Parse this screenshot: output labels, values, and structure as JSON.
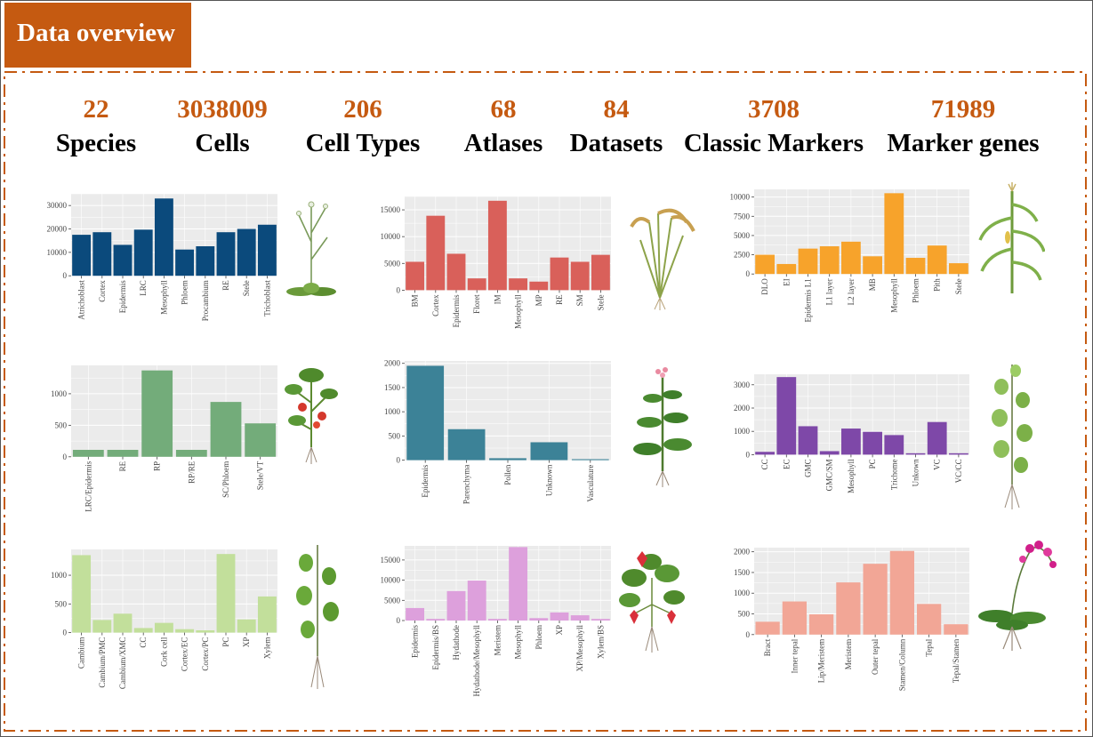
{
  "header": {
    "title": "Data overview"
  },
  "stats": [
    {
      "value": "22",
      "label": "Species"
    },
    {
      "value": "3038009",
      "label": "Cells"
    },
    {
      "value": "206",
      "label": "Cell Types"
    },
    {
      "value": "68",
      "label": "Atlases"
    },
    {
      "value": "84",
      "label": "Datasets"
    },
    {
      "value": "3708",
      "label": "Classic Markers"
    },
    {
      "value": "71989",
      "label": "Marker genes"
    }
  ],
  "plants": [
    {
      "icon": "arabidopsis-plant-icon"
    },
    {
      "icon": "rice-plant-icon"
    },
    {
      "icon": "maize-plant-icon"
    },
    {
      "icon": "tomato-plant-icon"
    },
    {
      "icon": "tobacco-plant-icon"
    },
    {
      "icon": "poplar-plant-icon"
    },
    {
      "icon": "seedling-plant-icon"
    },
    {
      "icon": "strawberry-plant-icon"
    },
    {
      "icon": "orchid-plant-icon"
    }
  ],
  "chart_data": [
    {
      "type": "bar",
      "color": "#0b4a7c",
      "categories": [
        "Atrichoblast",
        "Cortex",
        "Epidermis",
        "LRC",
        "Mesophyll",
        "Phloem",
        "Procambium",
        "RE",
        "Stele",
        "Trichoblast"
      ],
      "values": [
        17500,
        18600,
        13200,
        19700,
        33000,
        11200,
        12600,
        18600,
        20000,
        21800
      ],
      "ylim": [
        0,
        35000
      ],
      "yticks": [
        0,
        10000,
        20000,
        30000
      ]
    },
    {
      "type": "bar",
      "color": "#d9605a",
      "categories": [
        "BM",
        "Cortex",
        "Epidermis",
        "Floret",
        "IM",
        "Mesophyll",
        "MP",
        "RE",
        "SM",
        "Stele"
      ],
      "values": [
        5300,
        13900,
        6800,
        2200,
        16700,
        2200,
        1600,
        6100,
        5300,
        6600
      ],
      "ylim": [
        0,
        17500
      ],
      "yticks": [
        0,
        5000,
        10000,
        15000
      ]
    },
    {
      "type": "bar",
      "color": "#f7a32b",
      "categories": [
        "DLO",
        "EI",
        "Epidermis L1",
        "L1 layer",
        "L2 layer",
        "MB",
        "Mesophyll",
        "Phloem",
        "Pith",
        "Stele"
      ],
      "values": [
        2500,
        1300,
        3300,
        3600,
        4200,
        2300,
        10500,
        2100,
        3700,
        1400
      ],
      "ylim": [
        0,
        11000
      ],
      "yticks": [
        0,
        2500,
        5000,
        7500,
        10000
      ]
    },
    {
      "type": "bar",
      "color": "#73ac7a",
      "categories": [
        "LRC/Epidermis",
        "RE",
        "RP",
        "RP/RE",
        "SC/Phloem",
        "Stele/VT"
      ],
      "values": [
        110,
        110,
        1370,
        110,
        870,
        530
      ],
      "ylim": [
        0,
        1450
      ],
      "yticks": [
        0,
        500,
        1000
      ]
    },
    {
      "type": "bar",
      "color": "#3c8297",
      "categories": [
        "Epidermis",
        "Parenchyma",
        "Pollen",
        "Unknown",
        "Vasculature"
      ],
      "values": [
        1950,
        640,
        40,
        370,
        20
      ],
      "ylim": [
        0,
        2050
      ],
      "yticks": [
        0,
        500,
        1000,
        1500,
        2000
      ]
    },
    {
      "type": "bar",
      "color": "#7e48a8",
      "categories": [
        "CC",
        "EC",
        "GMC",
        "GMC/SM",
        "Mesophyll",
        "PC",
        "Trichome",
        "Unkown",
        "VC",
        "VC/CC"
      ],
      "values": [
        120,
        3330,
        1220,
        150,
        1120,
        980,
        840,
        60,
        1400,
        60
      ],
      "ylim": [
        0,
        3450
      ],
      "yticks": [
        0,
        1000,
        2000,
        3000
      ]
    },
    {
      "type": "bar",
      "color": "#c2df9b",
      "categories": [
        "Cambium",
        "Cambium/PMC",
        "Cambium/XMC",
        "CC",
        "Cork cell",
        "Cortex/EC",
        "Cortex/PC",
        "PC",
        "XP",
        "Xylem"
      ],
      "values": [
        1350,
        220,
        330,
        80,
        170,
        60,
        40,
        1370,
        230,
        630
      ],
      "ylim": [
        0,
        1450
      ],
      "yticks": [
        0,
        500,
        1000
      ]
    },
    {
      "type": "bar",
      "color": "#dda0dc",
      "categories": [
        "Epidermis",
        "Epidermis/BS",
        "Hydathode",
        "Hydathode/Mesophyll",
        "Meristem",
        "Mesophyll",
        "Phloem",
        "XP",
        "XP/Mesophyll",
        "Xylem/BS"
      ],
      "values": [
        3100,
        400,
        7300,
        9900,
        400,
        18200,
        600,
        2000,
        1300,
        400
      ],
      "ylim": [
        0,
        18500
      ],
      "yticks": [
        0,
        5000,
        10000,
        15000
      ]
    },
    {
      "type": "bar",
      "color": "#f2a696",
      "categories": [
        "Bract",
        "Inner tepal",
        "Lip/Meristem",
        "Meristem",
        "Outer tepal",
        "Stamen/Column",
        "Tepal",
        "Tepal/Stamen"
      ],
      "values": [
        310,
        800,
        490,
        1260,
        1710,
        2020,
        740,
        250
      ],
      "ylim": [
        0,
        2100
      ],
      "yticks": [
        0,
        500,
        1000,
        1500,
        2000
      ]
    }
  ]
}
